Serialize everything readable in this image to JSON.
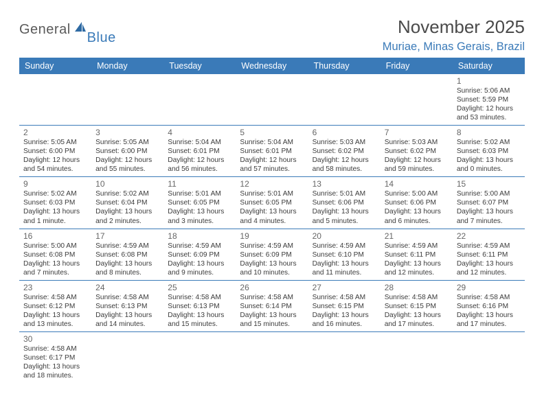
{
  "logo": {
    "text1": "General",
    "text2": "Blue"
  },
  "title": "November 2025",
  "location": "Muriae, Minas Gerais, Brazil",
  "colors": {
    "header_bg": "#3a7ab8",
    "header_text": "#ffffff",
    "title_text": "#4a4a4a",
    "border": "#3a7ab8"
  },
  "day_headers": [
    "Sunday",
    "Monday",
    "Tuesday",
    "Wednesday",
    "Thursday",
    "Friday",
    "Saturday"
  ],
  "weeks": [
    [
      null,
      null,
      null,
      null,
      null,
      null,
      {
        "n": "1",
        "sr": "Sunrise: 5:06 AM",
        "ss": "Sunset: 5:59 PM",
        "d1": "Daylight: 12 hours",
        "d2": "and 53 minutes."
      }
    ],
    [
      {
        "n": "2",
        "sr": "Sunrise: 5:05 AM",
        "ss": "Sunset: 6:00 PM",
        "d1": "Daylight: 12 hours",
        "d2": "and 54 minutes."
      },
      {
        "n": "3",
        "sr": "Sunrise: 5:05 AM",
        "ss": "Sunset: 6:00 PM",
        "d1": "Daylight: 12 hours",
        "d2": "and 55 minutes."
      },
      {
        "n": "4",
        "sr": "Sunrise: 5:04 AM",
        "ss": "Sunset: 6:01 PM",
        "d1": "Daylight: 12 hours",
        "d2": "and 56 minutes."
      },
      {
        "n": "5",
        "sr": "Sunrise: 5:04 AM",
        "ss": "Sunset: 6:01 PM",
        "d1": "Daylight: 12 hours",
        "d2": "and 57 minutes."
      },
      {
        "n": "6",
        "sr": "Sunrise: 5:03 AM",
        "ss": "Sunset: 6:02 PM",
        "d1": "Daylight: 12 hours",
        "d2": "and 58 minutes."
      },
      {
        "n": "7",
        "sr": "Sunrise: 5:03 AM",
        "ss": "Sunset: 6:02 PM",
        "d1": "Daylight: 12 hours",
        "d2": "and 59 minutes."
      },
      {
        "n": "8",
        "sr": "Sunrise: 5:02 AM",
        "ss": "Sunset: 6:03 PM",
        "d1": "Daylight: 13 hours",
        "d2": "and 0 minutes."
      }
    ],
    [
      {
        "n": "9",
        "sr": "Sunrise: 5:02 AM",
        "ss": "Sunset: 6:03 PM",
        "d1": "Daylight: 13 hours",
        "d2": "and 1 minute."
      },
      {
        "n": "10",
        "sr": "Sunrise: 5:02 AM",
        "ss": "Sunset: 6:04 PM",
        "d1": "Daylight: 13 hours",
        "d2": "and 2 minutes."
      },
      {
        "n": "11",
        "sr": "Sunrise: 5:01 AM",
        "ss": "Sunset: 6:05 PM",
        "d1": "Daylight: 13 hours",
        "d2": "and 3 minutes."
      },
      {
        "n": "12",
        "sr": "Sunrise: 5:01 AM",
        "ss": "Sunset: 6:05 PM",
        "d1": "Daylight: 13 hours",
        "d2": "and 4 minutes."
      },
      {
        "n": "13",
        "sr": "Sunrise: 5:01 AM",
        "ss": "Sunset: 6:06 PM",
        "d1": "Daylight: 13 hours",
        "d2": "and 5 minutes."
      },
      {
        "n": "14",
        "sr": "Sunrise: 5:00 AM",
        "ss": "Sunset: 6:06 PM",
        "d1": "Daylight: 13 hours",
        "d2": "and 6 minutes."
      },
      {
        "n": "15",
        "sr": "Sunrise: 5:00 AM",
        "ss": "Sunset: 6:07 PM",
        "d1": "Daylight: 13 hours",
        "d2": "and 7 minutes."
      }
    ],
    [
      {
        "n": "16",
        "sr": "Sunrise: 5:00 AM",
        "ss": "Sunset: 6:08 PM",
        "d1": "Daylight: 13 hours",
        "d2": "and 7 minutes."
      },
      {
        "n": "17",
        "sr": "Sunrise: 4:59 AM",
        "ss": "Sunset: 6:08 PM",
        "d1": "Daylight: 13 hours",
        "d2": "and 8 minutes."
      },
      {
        "n": "18",
        "sr": "Sunrise: 4:59 AM",
        "ss": "Sunset: 6:09 PM",
        "d1": "Daylight: 13 hours",
        "d2": "and 9 minutes."
      },
      {
        "n": "19",
        "sr": "Sunrise: 4:59 AM",
        "ss": "Sunset: 6:09 PM",
        "d1": "Daylight: 13 hours",
        "d2": "and 10 minutes."
      },
      {
        "n": "20",
        "sr": "Sunrise: 4:59 AM",
        "ss": "Sunset: 6:10 PM",
        "d1": "Daylight: 13 hours",
        "d2": "and 11 minutes."
      },
      {
        "n": "21",
        "sr": "Sunrise: 4:59 AM",
        "ss": "Sunset: 6:11 PM",
        "d1": "Daylight: 13 hours",
        "d2": "and 12 minutes."
      },
      {
        "n": "22",
        "sr": "Sunrise: 4:59 AM",
        "ss": "Sunset: 6:11 PM",
        "d1": "Daylight: 13 hours",
        "d2": "and 12 minutes."
      }
    ],
    [
      {
        "n": "23",
        "sr": "Sunrise: 4:58 AM",
        "ss": "Sunset: 6:12 PM",
        "d1": "Daylight: 13 hours",
        "d2": "and 13 minutes."
      },
      {
        "n": "24",
        "sr": "Sunrise: 4:58 AM",
        "ss": "Sunset: 6:13 PM",
        "d1": "Daylight: 13 hours",
        "d2": "and 14 minutes."
      },
      {
        "n": "25",
        "sr": "Sunrise: 4:58 AM",
        "ss": "Sunset: 6:13 PM",
        "d1": "Daylight: 13 hours",
        "d2": "and 15 minutes."
      },
      {
        "n": "26",
        "sr": "Sunrise: 4:58 AM",
        "ss": "Sunset: 6:14 PM",
        "d1": "Daylight: 13 hours",
        "d2": "and 15 minutes."
      },
      {
        "n": "27",
        "sr": "Sunrise: 4:58 AM",
        "ss": "Sunset: 6:15 PM",
        "d1": "Daylight: 13 hours",
        "d2": "and 16 minutes."
      },
      {
        "n": "28",
        "sr": "Sunrise: 4:58 AM",
        "ss": "Sunset: 6:15 PM",
        "d1": "Daylight: 13 hours",
        "d2": "and 17 minutes."
      },
      {
        "n": "29",
        "sr": "Sunrise: 4:58 AM",
        "ss": "Sunset: 6:16 PM",
        "d1": "Daylight: 13 hours",
        "d2": "and 17 minutes."
      }
    ],
    [
      {
        "n": "30",
        "sr": "Sunrise: 4:58 AM",
        "ss": "Sunset: 6:17 PM",
        "d1": "Daylight: 13 hours",
        "d2": "and 18 minutes."
      },
      null,
      null,
      null,
      null,
      null,
      null
    ]
  ]
}
